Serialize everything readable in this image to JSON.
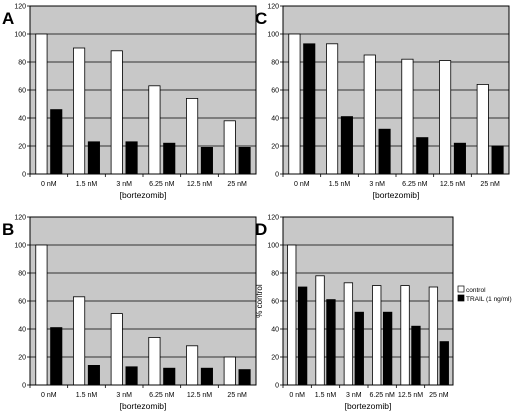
{
  "figure": {
    "legend": {
      "control": "control",
      "trail": "TRAIL (1 ng/ml)"
    },
    "colors": {
      "plot_bg": "#c8c8c8",
      "control_bar": "#ffffff",
      "trail_bar": "#000000",
      "grid": "#000000"
    }
  },
  "chart_data": [
    {
      "type": "bar",
      "panel": "A",
      "categories": [
        "0 nM",
        "1.5 nM",
        "3 nM",
        "6.25 nM",
        "12.5 nM",
        "25 nM"
      ],
      "series": [
        {
          "name": "control",
          "values": [
            100,
            90,
            88,
            63,
            54,
            38
          ]
        },
        {
          "name": "TRAIL (1 ng/ml)",
          "values": [
            46,
            23,
            23,
            22,
            19,
            19
          ]
        }
      ],
      "xlabel": "[bortezomib]",
      "ylabel": "",
      "ylim": [
        0,
        120
      ],
      "yticks": [
        0,
        20,
        40,
        60,
        80,
        100,
        120
      ],
      "grid": true,
      "legend": false
    },
    {
      "type": "bar",
      "panel": "C",
      "categories": [
        "0 nM",
        "1.5 nM",
        "3 nM",
        "6.25 nM",
        "12.5 nM",
        "25 nM"
      ],
      "series": [
        {
          "name": "control",
          "values": [
            100,
            93,
            85,
            82,
            81,
            64
          ]
        },
        {
          "name": "TRAIL (1 ng/ml)",
          "values": [
            93,
            41,
            32,
            26,
            22,
            20
          ]
        }
      ],
      "xlabel": "[bortezomib]",
      "ylabel": "",
      "ylim": [
        0,
        120
      ],
      "yticks": [
        0,
        20,
        40,
        60,
        80,
        100,
        120
      ],
      "grid": true,
      "legend": false
    },
    {
      "type": "bar",
      "panel": "B",
      "categories": [
        "0 nM",
        "1.5 nM",
        "3 nM",
        "6.25 nM",
        "12.5 nM",
        "25 nM"
      ],
      "series": [
        {
          "name": "control",
          "values": [
            100,
            63,
            51,
            34,
            28,
            20
          ]
        },
        {
          "name": "TRAIL (1 ng/ml)",
          "values": [
            41,
            14,
            13,
            12,
            12,
            11
          ]
        }
      ],
      "xlabel": "[bortezomib]",
      "ylabel": "",
      "ylim": [
        0,
        120
      ],
      "yticks": [
        0,
        20,
        40,
        60,
        80,
        100,
        120
      ],
      "grid": true,
      "legend": false
    },
    {
      "type": "bar",
      "panel": "D",
      "categories": [
        "0 nM",
        "1.5 nM",
        "3 nM",
        "6.25 nM",
        "12.5 nM",
        "25 nM"
      ],
      "series": [
        {
          "name": "control",
          "values": [
            100,
            78,
            73,
            71,
            71,
            70
          ]
        },
        {
          "name": "TRAIL (1 ng/ml)",
          "values": [
            70,
            61,
            52,
            52,
            42,
            31
          ]
        }
      ],
      "xlabel": "[bortezomib]",
      "ylabel": "% control",
      "ylim": [
        0,
        120
      ],
      "yticks": [
        0,
        20,
        40,
        60,
        80,
        100,
        120
      ],
      "grid": true,
      "legend": "right"
    }
  ]
}
